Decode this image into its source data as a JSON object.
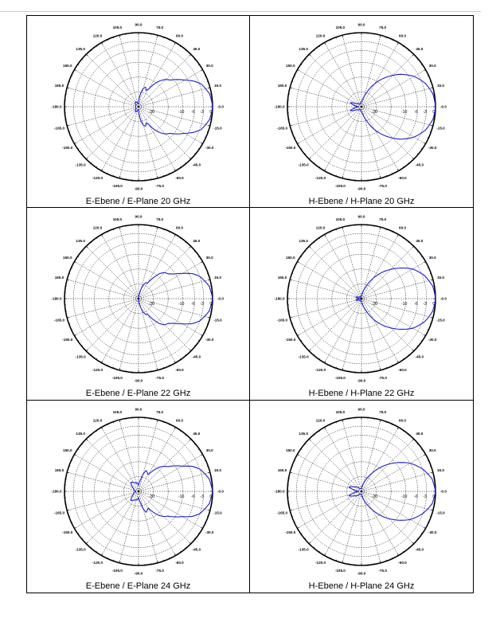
{
  "colors": {
    "pattern": "#1f1fd0",
    "grid": "#000000"
  },
  "angle_labels": [
    "-0.0",
    "15.0",
    "30.0",
    "45.0",
    "60.0",
    "75.0",
    "90.0",
    "105.0",
    "120.0",
    "135.0",
    "150.0",
    "165.0",
    "-180.0",
    "-165.0",
    "-150.0",
    "-135.0",
    "-120.0",
    "-105.0",
    "-90.0",
    "-75.0",
    "-60.0",
    "-45.0",
    "-30.0",
    "-15.0"
  ],
  "radial_labels": [
    "0",
    "-3",
    "-6",
    "-10",
    "-20"
  ],
  "chart_data": [
    {
      "type": "polar",
      "caption": "E-Ebene / E-Plane 20 GHz",
      "plane": "E",
      "pattern_db": [
        [
          0,
          0
        ],
        [
          10,
          -0.6
        ],
        [
          20,
          -2.5
        ],
        [
          25,
          -4.5
        ],
        [
          30,
          -7
        ],
        [
          35,
          -9
        ],
        [
          40,
          -11
        ],
        [
          45,
          -12
        ],
        [
          50,
          -13.5
        ],
        [
          55,
          -15.5
        ],
        [
          60,
          -18
        ],
        [
          65,
          -19
        ],
        [
          70,
          -18
        ],
        [
          75,
          -18.5
        ],
        [
          80,
          -20
        ],
        [
          90,
          -24
        ],
        [
          100,
          -24
        ],
        [
          120,
          -23
        ],
        [
          150,
          -24
        ],
        [
          180,
          -24
        ],
        [
          210,
          -24
        ],
        [
          240,
          -23
        ],
        [
          260,
          -24
        ],
        [
          270,
          -24
        ],
        [
          280,
          -20
        ],
        [
          285,
          -18.5
        ],
        [
          290,
          -18
        ],
        [
          295,
          -19
        ],
        [
          300,
          -18
        ],
        [
          305,
          -15.5
        ],
        [
          310,
          -13.5
        ],
        [
          315,
          -12
        ],
        [
          320,
          -11
        ],
        [
          325,
          -9
        ],
        [
          330,
          -7
        ],
        [
          335,
          -4.5
        ],
        [
          340,
          -2.5
        ],
        [
          350,
          -0.6
        ],
        [
          360,
          0
        ]
      ]
    },
    {
      "type": "polar",
      "caption": "H-Ebene / H-Plane 20 GHz",
      "plane": "H",
      "pattern_db": [
        [
          0,
          0
        ],
        [
          10,
          -0.5
        ],
        [
          20,
          -2
        ],
        [
          30,
          -4.5
        ],
        [
          40,
          -8
        ],
        [
          50,
          -12
        ],
        [
          60,
          -16
        ],
        [
          70,
          -20
        ],
        [
          80,
          -22.5
        ],
        [
          90,
          -23.5
        ],
        [
          120,
          -24
        ],
        [
          150,
          -23
        ],
        [
          160,
          -21
        ],
        [
          170,
          -22.5
        ],
        [
          180,
          -24
        ],
        [
          190,
          -22.5
        ],
        [
          200,
          -21
        ],
        [
          210,
          -23
        ],
        [
          240,
          -24
        ],
        [
          270,
          -23.5
        ],
        [
          280,
          -22.5
        ],
        [
          290,
          -20
        ],
        [
          300,
          -16
        ],
        [
          310,
          -12
        ],
        [
          320,
          -8
        ],
        [
          330,
          -4.5
        ],
        [
          340,
          -2
        ],
        [
          350,
          -0.5
        ],
        [
          360,
          0
        ]
      ]
    },
    {
      "type": "polar",
      "caption": "E-Ebene / E-Plane 22 GHz",
      "plane": "E",
      "pattern_db": [
        [
          0,
          0
        ],
        [
          10,
          -0.8
        ],
        [
          20,
          -3
        ],
        [
          25,
          -5
        ],
        [
          30,
          -8
        ],
        [
          35,
          -10.5
        ],
        [
          40,
          -12
        ],
        [
          45,
          -12.5
        ],
        [
          50,
          -14
        ],
        [
          55,
          -16.5
        ],
        [
          60,
          -19
        ],
        [
          65,
          -19
        ],
        [
          70,
          -20
        ],
        [
          80,
          -23
        ],
        [
          90,
          -25
        ],
        [
          120,
          -25
        ],
        [
          180,
          -25
        ],
        [
          240,
          -25
        ],
        [
          270,
          -25
        ],
        [
          280,
          -23
        ],
        [
          290,
          -20
        ],
        [
          295,
          -19
        ],
        [
          300,
          -19
        ],
        [
          305,
          -16.5
        ],
        [
          310,
          -14
        ],
        [
          315,
          -12.5
        ],
        [
          320,
          -12
        ],
        [
          325,
          -10.5
        ],
        [
          330,
          -8
        ],
        [
          335,
          -5
        ],
        [
          340,
          -3
        ],
        [
          350,
          -0.8
        ],
        [
          360,
          0
        ]
      ]
    },
    {
      "type": "polar",
      "caption": "H-Ebene / H-Plane 22 GHz",
      "plane": "H",
      "pattern_db": [
        [
          0,
          0
        ],
        [
          10,
          -0.6
        ],
        [
          20,
          -2.3
        ],
        [
          30,
          -5
        ],
        [
          40,
          -9
        ],
        [
          50,
          -13
        ],
        [
          60,
          -17
        ],
        [
          70,
          -21
        ],
        [
          80,
          -23
        ],
        [
          90,
          -24
        ],
        [
          120,
          -24.5
        ],
        [
          150,
          -24
        ],
        [
          165,
          -23
        ],
        [
          180,
          -24.5
        ],
        [
          195,
          -23
        ],
        [
          210,
          -24
        ],
        [
          240,
          -24.5
        ],
        [
          270,
          -24
        ],
        [
          280,
          -23
        ],
        [
          290,
          -21
        ],
        [
          300,
          -17
        ],
        [
          310,
          -13
        ],
        [
          320,
          -9
        ],
        [
          330,
          -5
        ],
        [
          340,
          -2.3
        ],
        [
          350,
          -0.6
        ],
        [
          360,
          0
        ]
      ]
    },
    {
      "type": "polar",
      "caption": "E-Ebene / E-Plane 24 GHz",
      "plane": "E",
      "pattern_db": [
        [
          0,
          0
        ],
        [
          10,
          -0.8
        ],
        [
          20,
          -3
        ],
        [
          25,
          -5
        ],
        [
          30,
          -8
        ],
        [
          35,
          -10
        ],
        [
          40,
          -12
        ],
        [
          45,
          -13
        ],
        [
          50,
          -14.5
        ],
        [
          55,
          -16.5
        ],
        [
          60,
          -18.5
        ],
        [
          65,
          -18
        ],
        [
          70,
          -17.5
        ],
        [
          75,
          -19
        ],
        [
          80,
          -21
        ],
        [
          90,
          -23
        ],
        [
          100,
          -22
        ],
        [
          110,
          -22
        ],
        [
          130,
          -21
        ],
        [
          150,
          -23
        ],
        [
          180,
          -24
        ],
        [
          210,
          -23
        ],
        [
          230,
          -21
        ],
        [
          250,
          -22
        ],
        [
          260,
          -22
        ],
        [
          270,
          -23
        ],
        [
          280,
          -21
        ],
        [
          285,
          -19
        ],
        [
          290,
          -17.5
        ],
        [
          295,
          -18
        ],
        [
          300,
          -18.5
        ],
        [
          305,
          -16.5
        ],
        [
          310,
          -14.5
        ],
        [
          315,
          -13
        ],
        [
          320,
          -12
        ],
        [
          325,
          -10
        ],
        [
          330,
          -8
        ],
        [
          335,
          -5
        ],
        [
          340,
          -3
        ],
        [
          350,
          -0.8
        ],
        [
          360,
          0
        ]
      ]
    },
    {
      "type": "polar",
      "caption": "H-Ebene / H-Plane 24 GHz",
      "plane": "H",
      "pattern_db": [
        [
          0,
          0
        ],
        [
          10,
          -0.8
        ],
        [
          20,
          -3
        ],
        [
          30,
          -6
        ],
        [
          40,
          -10
        ],
        [
          50,
          -14
        ],
        [
          60,
          -18
        ],
        [
          70,
          -21
        ],
        [
          80,
          -23
        ],
        [
          90,
          -24
        ],
        [
          120,
          -24
        ],
        [
          150,
          -22
        ],
        [
          160,
          -20.5
        ],
        [
          170,
          -22.5
        ],
        [
          180,
          -24
        ],
        [
          190,
          -22.5
        ],
        [
          200,
          -20.5
        ],
        [
          210,
          -22
        ],
        [
          240,
          -24
        ],
        [
          270,
          -24
        ],
        [
          280,
          -23
        ],
        [
          290,
          -21
        ],
        [
          300,
          -18
        ],
        [
          310,
          -14
        ],
        [
          320,
          -10
        ],
        [
          330,
          -6
        ],
        [
          340,
          -3
        ],
        [
          350,
          -0.8
        ],
        [
          360,
          0
        ]
      ]
    }
  ]
}
